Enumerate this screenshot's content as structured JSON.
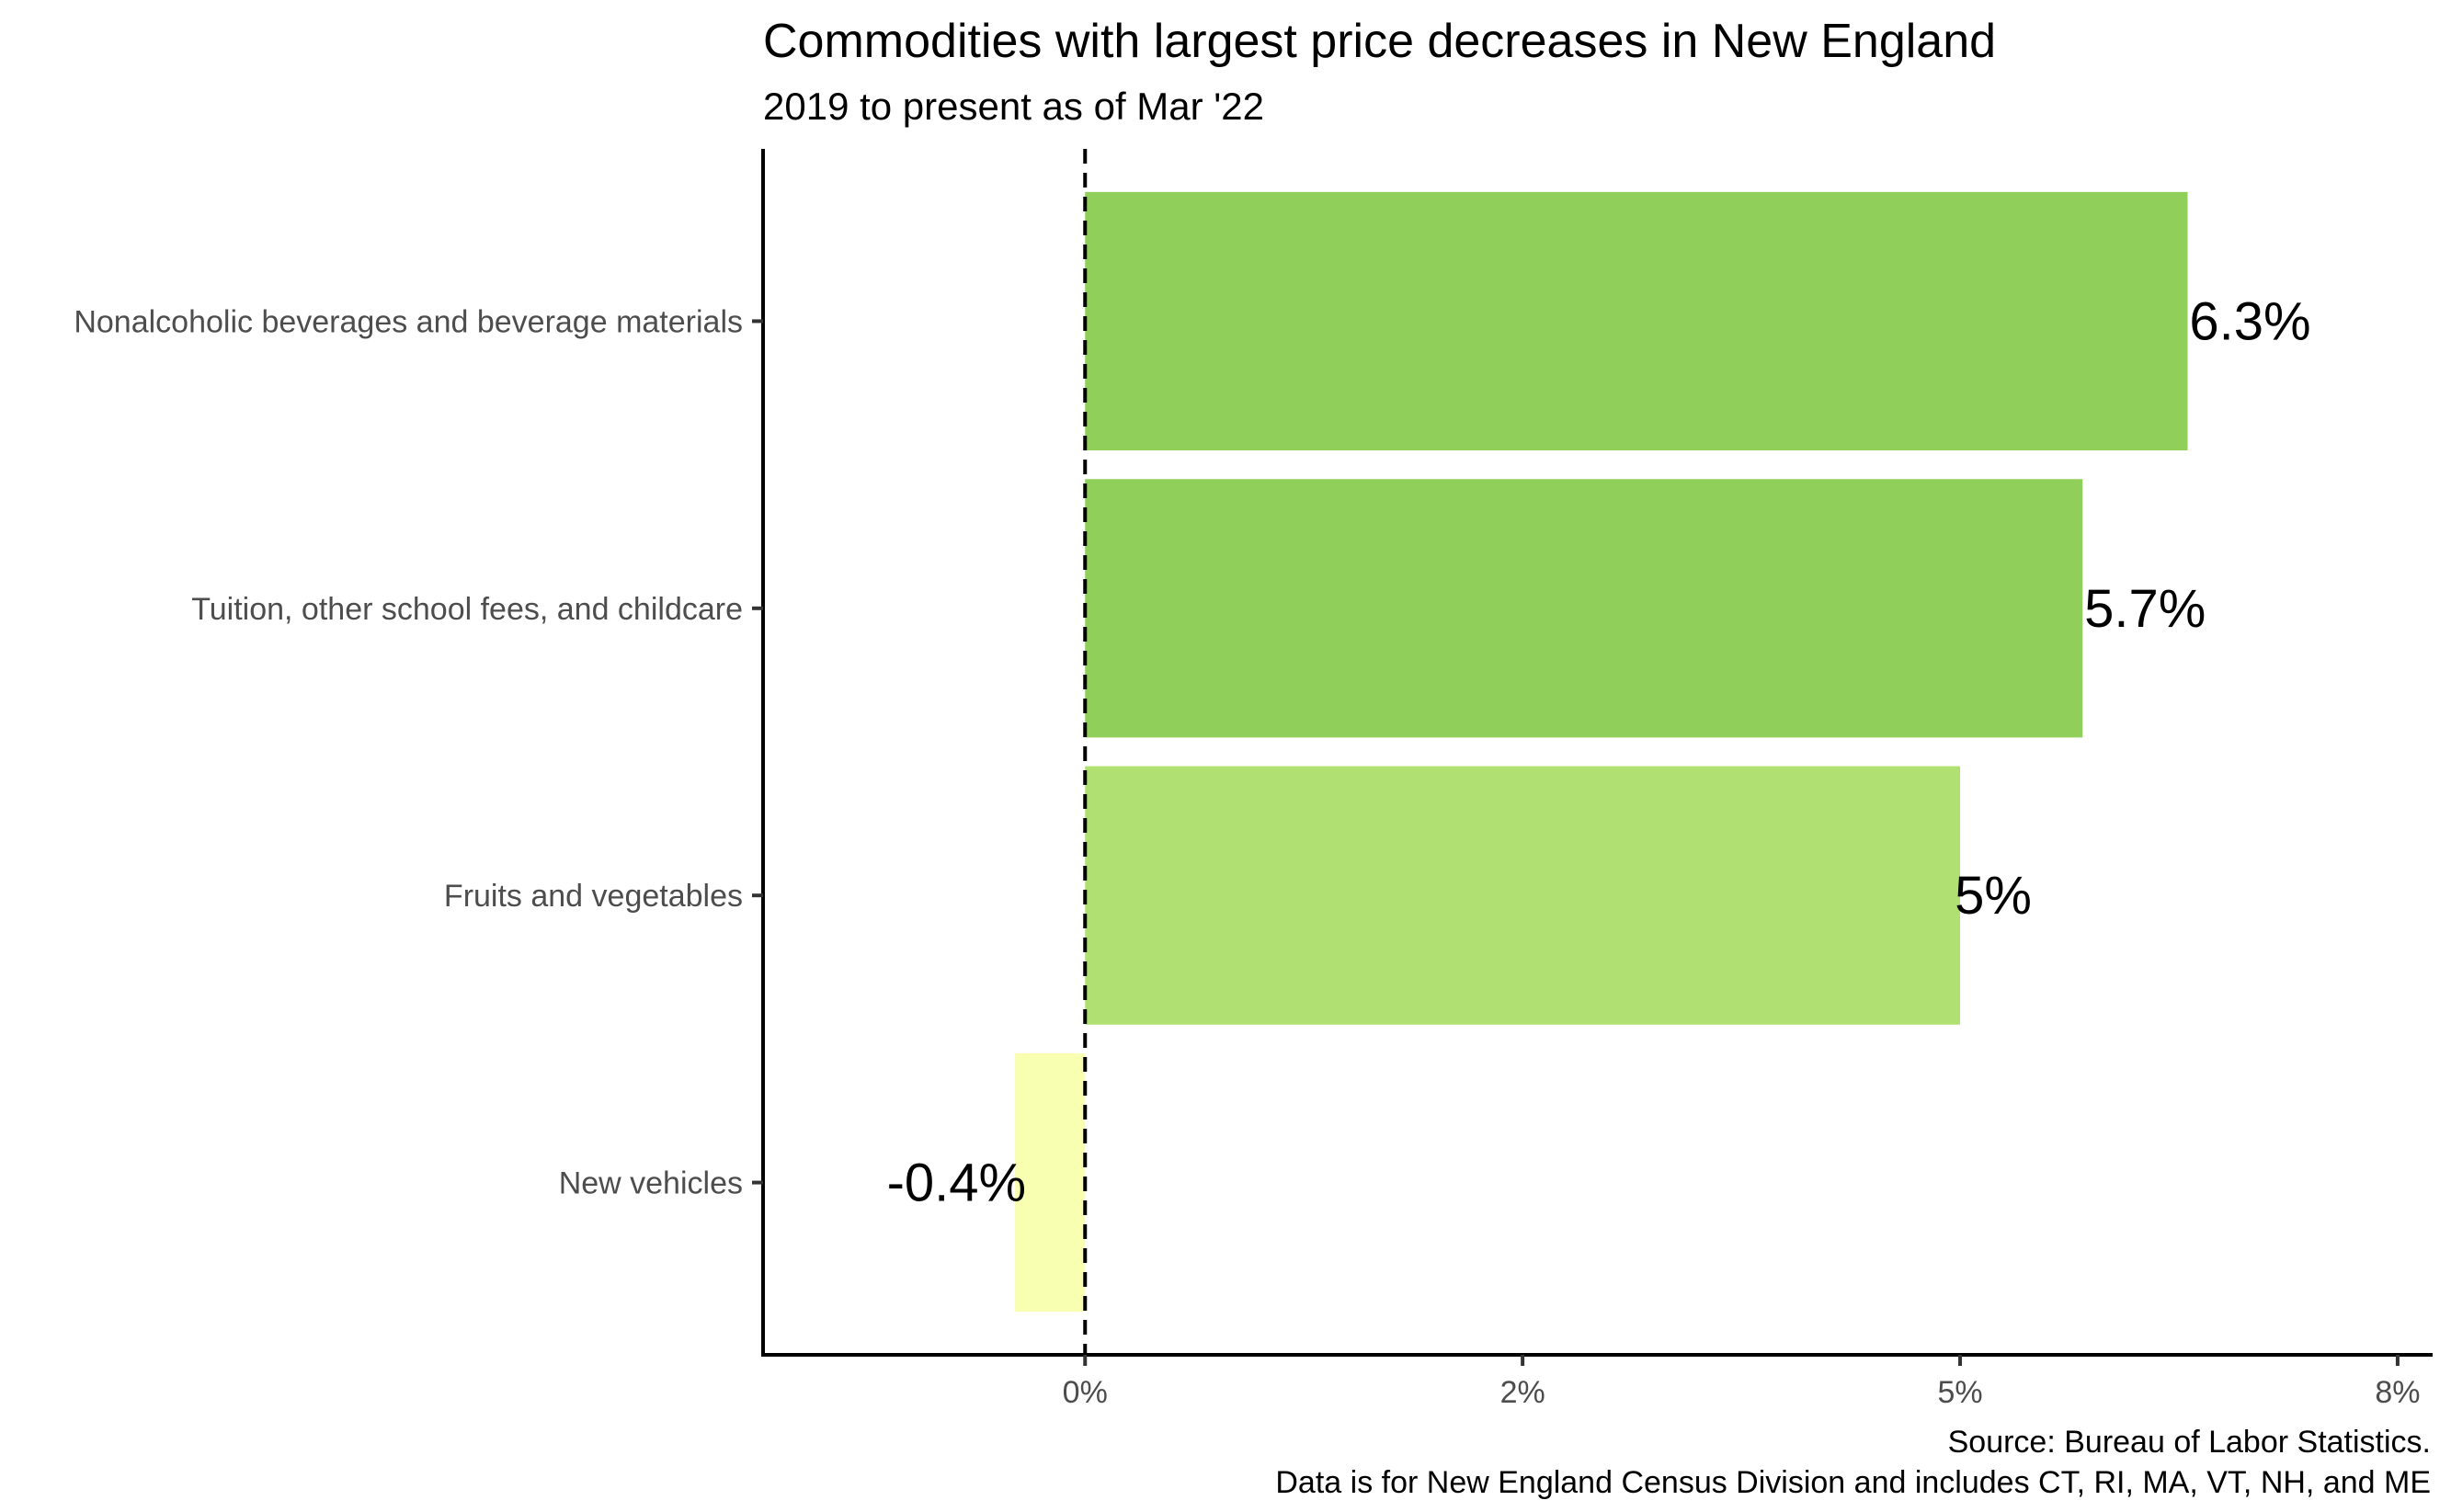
{
  "chart_data": {
    "type": "bar",
    "orientation": "horizontal",
    "title": "Commodities with largest price decreases in New England",
    "subtitle": "2019 to present as of Mar '22",
    "categories": [
      "Nonalcoholic beverages and beverage materials",
      "Tuition, other school fees, and childcare",
      "Fruits and vegetables",
      "New vehicles"
    ],
    "values": [
      6.3,
      5.7,
      5.0,
      -0.4
    ],
    "data_labels": [
      "6.3%",
      "5.7%",
      "5%",
      "-0.4%"
    ],
    "colors": [
      "#8fcf5a",
      "#8fcf5a",
      "#b0e072",
      "#f8ffb0"
    ],
    "xlim": [
      -1.84,
      7.7
    ],
    "x_ticks": [
      0,
      2.5,
      5,
      7.5
    ],
    "x_tick_labels": [
      "0%",
      "2%",
      "5%",
      "8%"
    ],
    "reference_line": {
      "x": 0,
      "style": "dashed"
    },
    "grid": false,
    "legend": "none",
    "caption": [
      "Source: Bureau of Labor Statistics.",
      "Data is for New England Census Division and includes CT, RI, MA, VT, NH, and ME"
    ]
  }
}
